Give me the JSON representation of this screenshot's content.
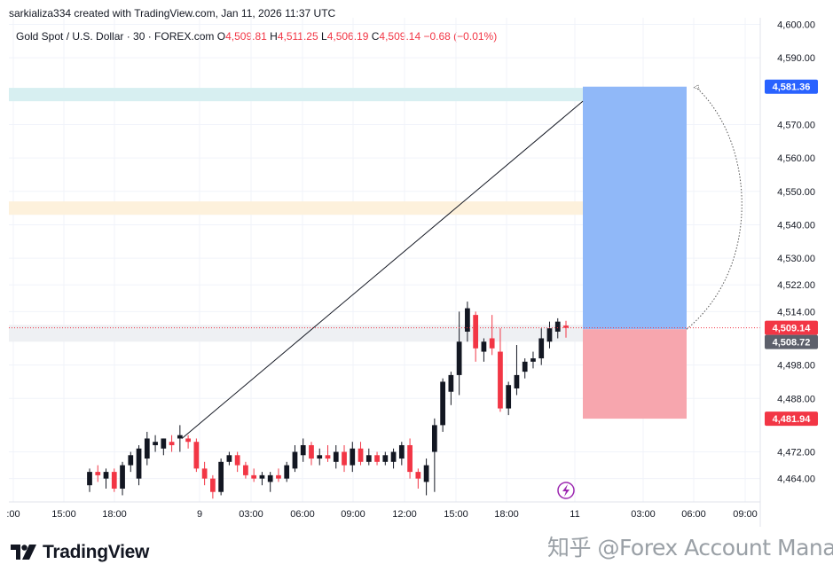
{
  "header": {
    "credit": "sarkializa334 created with TradingView.com, Jan 11, 2026 11:37 UTC",
    "symbol": "Gold Spot / U.S. Dollar · 30 · FOREX.com",
    "open_label": "O",
    "open": "4,509.81",
    "high_label": "H",
    "high": "4,511.25",
    "low_label": "L",
    "low": "4,506.19",
    "close_label": "C",
    "close": "4,509.14",
    "change": "−0.68 (−0.01%)"
  },
  "colors": {
    "up": "#131722",
    "down": "#f23645",
    "target_zone": "#8ab4f8",
    "stop_zone": "#f7a1aa",
    "upper_band": "#d7eff1",
    "middle_band": "#fdf1dc",
    "tag_blue": "#2962ff",
    "tag_red": "#f23645",
    "tag_gray": "#5d606b"
  },
  "price_tags": {
    "target": "4,581.36",
    "current": "4,509.14",
    "entry": "4,508.72",
    "stop": "4,481.94"
  },
  "branding": {
    "logo_text": "TradingView"
  },
  "watermark": "知乎 @Forex Account Manager",
  "event_icon": "lightning-icon",
  "chart_data": {
    "type": "candlestick",
    "symbol": "Gold Spot / U.S. Dollar",
    "interval": "30",
    "ylim": [
      4457,
      4602
    ],
    "y_ticks": [
      4464.0,
      4472.0,
      4481.94,
      4488.0,
      4498.0,
      4509.14,
      4514.0,
      4522.0,
      4530.0,
      4540.0,
      4550.0,
      4560.0,
      4570.0,
      4581.36,
      4590.0,
      4600.0
    ],
    "y_tick_labels": [
      "4,464.00",
      "4,472.00",
      "4,481.94",
      "4,488.00",
      "4,498.00",
      "4,509.14",
      "4,514.00",
      "4,522.00",
      "4,530.00",
      "4,540.00",
      "4,550.00",
      "4,560.00",
      "4,570.00",
      "4,581.36",
      "4,590.00",
      "4,600.00"
    ],
    "x_ticks": [
      ":00",
      "15:00",
      "18:00",
      "9",
      "03:00",
      "06:00",
      "09:00",
      "12:00",
      "15:00",
      "18:00",
      "11",
      "03:00",
      "06:00",
      "09:00"
    ],
    "bands": [
      {
        "from": 4577,
        "to": 4581
      },
      {
        "from": 4543,
        "to": 4547
      },
      {
        "from": 4505,
        "to": 4510
      }
    ],
    "position": {
      "entry": 4508.72,
      "target": 4581.36,
      "stop": 4481.94
    },
    "trend_line": {
      "from_price": 4476,
      "to_price": 4577
    },
    "candles": [
      {
        "o": 4462,
        "h": 4467,
        "l": 4460,
        "c": 4466
      },
      {
        "o": 4466,
        "h": 4468,
        "l": 4463,
        "c": 4465
      },
      {
        "o": 4464,
        "h": 4467,
        "l": 4461,
        "c": 4466
      },
      {
        "o": 4466,
        "h": 4467,
        "l": 4460,
        "c": 4461
      },
      {
        "o": 4461,
        "h": 4469,
        "l": 4459,
        "c": 4468
      },
      {
        "o": 4468,
        "h": 4472,
        "l": 4466,
        "c": 4471
      },
      {
        "o": 4464,
        "h": 4474,
        "l": 4462,
        "c": 4473
      },
      {
        "o": 4470,
        "h": 4478,
        "l": 4468,
        "c": 4476
      },
      {
        "o": 4474,
        "h": 4477,
        "l": 4472,
        "c": 4475
      },
      {
        "o": 4473,
        "h": 4476,
        "l": 4471,
        "c": 4476
      },
      {
        "o": 4475,
        "h": 4477,
        "l": 4472,
        "c": 4474
      },
      {
        "o": 4476,
        "h": 4480,
        "l": 4472,
        "c": 4477
      },
      {
        "o": 4476,
        "h": 4477,
        "l": 4473,
        "c": 4475
      },
      {
        "o": 4475,
        "h": 4476,
        "l": 4466,
        "c": 4467
      },
      {
        "o": 4467,
        "h": 4469,
        "l": 4462,
        "c": 4464
      },
      {
        "o": 4464,
        "h": 4465,
        "l": 4458,
        "c": 4460
      },
      {
        "o": 4460,
        "h": 4470,
        "l": 4459,
        "c": 4469
      },
      {
        "o": 4469,
        "h": 4472,
        "l": 4468,
        "c": 4471
      },
      {
        "o": 4471,
        "h": 4472,
        "l": 4466,
        "c": 4468
      },
      {
        "o": 4468,
        "h": 4469,
        "l": 4464,
        "c": 4465
      },
      {
        "o": 4465,
        "h": 4467,
        "l": 4463,
        "c": 4464
      },
      {
        "o": 4464,
        "h": 4466,
        "l": 4462,
        "c": 4465
      },
      {
        "o": 4463,
        "h": 4466,
        "l": 4460,
        "c": 4465
      },
      {
        "o": 4465,
        "h": 4467,
        "l": 4463,
        "c": 4464
      },
      {
        "o": 4464,
        "h": 4469,
        "l": 4463,
        "c": 4468
      },
      {
        "o": 4467,
        "h": 4474,
        "l": 4466,
        "c": 4472
      },
      {
        "o": 4471,
        "h": 4476,
        "l": 4469,
        "c": 4474
      },
      {
        "o": 4474,
        "h": 4475,
        "l": 4468,
        "c": 4470
      },
      {
        "o": 4470,
        "h": 4473,
        "l": 4468,
        "c": 4471
      },
      {
        "o": 4471,
        "h": 4474,
        "l": 4469,
        "c": 4470
      },
      {
        "o": 4469,
        "h": 4474,
        "l": 4467,
        "c": 4472
      },
      {
        "o": 4472,
        "h": 4474,
        "l": 4466,
        "c": 4468
      },
      {
        "o": 4468,
        "h": 4475,
        "l": 4466,
        "c": 4473
      },
      {
        "o": 4473,
        "h": 4475,
        "l": 4468,
        "c": 4469
      },
      {
        "o": 4469,
        "h": 4473,
        "l": 4468,
        "c": 4471
      },
      {
        "o": 4471,
        "h": 4472,
        "l": 4468,
        "c": 4469
      },
      {
        "o": 4469,
        "h": 4472,
        "l": 4468,
        "c": 4471
      },
      {
        "o": 4469,
        "h": 4473,
        "l": 4467,
        "c": 4472
      },
      {
        "o": 4470,
        "h": 4475,
        "l": 4468,
        "c": 4474
      },
      {
        "o": 4474,
        "h": 4476,
        "l": 4464,
        "c": 4466
      },
      {
        "o": 4466,
        "h": 4467,
        "l": 4461,
        "c": 4464
      },
      {
        "o": 4463,
        "h": 4470,
        "l": 4459,
        "c": 4468
      },
      {
        "o": 4472,
        "h": 4482,
        "l": 4460,
        "c": 4480
      },
      {
        "o": 4480,
        "h": 4494,
        "l": 4478,
        "c": 4493
      },
      {
        "o": 4490,
        "h": 4496,
        "l": 4486,
        "c": 4495
      },
      {
        "o": 4495,
        "h": 4514,
        "l": 4489,
        "c": 4505
      },
      {
        "o": 4508,
        "h": 4517,
        "l": 4505,
        "c": 4515
      },
      {
        "o": 4513,
        "h": 4514,
        "l": 4499,
        "c": 4503
      },
      {
        "o": 4502,
        "h": 4506,
        "l": 4499,
        "c": 4505
      },
      {
        "o": 4506,
        "h": 4513,
        "l": 4501,
        "c": 4503
      },
      {
        "o": 4502,
        "h": 4509,
        "l": 4484,
        "c": 4485
      },
      {
        "o": 4485,
        "h": 4493,
        "l": 4483,
        "c": 4492
      },
      {
        "o": 4491,
        "h": 4504,
        "l": 4489,
        "c": 4495
      },
      {
        "o": 4496,
        "h": 4500,
        "l": 4494,
        "c": 4499
      },
      {
        "o": 4499,
        "h": 4502,
        "l": 4497,
        "c": 4500
      },
      {
        "o": 4500,
        "h": 4509,
        "l": 4498,
        "c": 4506
      },
      {
        "o": 4505,
        "h": 4511,
        "l": 4503,
        "c": 4509
      },
      {
        "o": 4508,
        "h": 4512,
        "l": 4506,
        "c": 4511
      },
      {
        "o": 4509.81,
        "h": 4511.25,
        "l": 4506.19,
        "c": 4509.14
      }
    ]
  }
}
